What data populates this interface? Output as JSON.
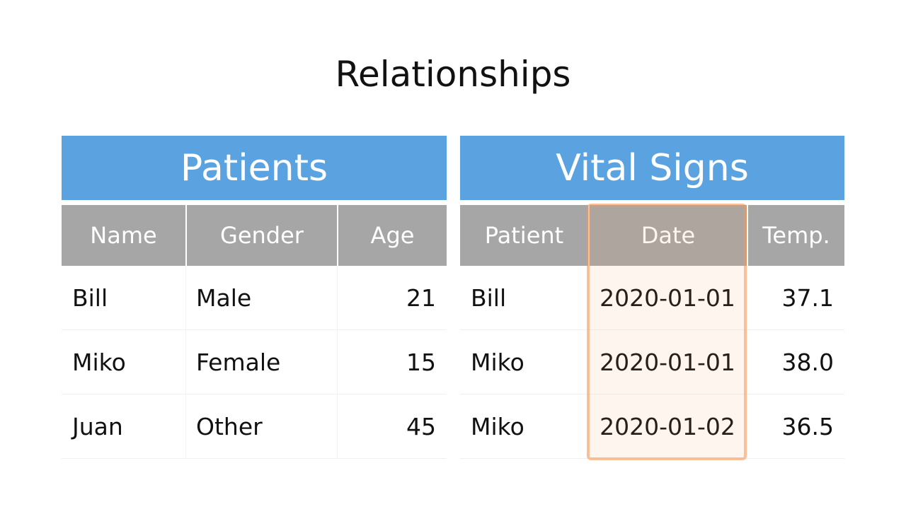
{
  "title": "Relationships",
  "tables": [
    {
      "title": "Patients",
      "columns": [
        "Name",
        "Gender",
        "Age"
      ],
      "rows": [
        [
          "Bill",
          "Male",
          "21"
        ],
        [
          "Miko",
          "Female",
          "15"
        ],
        [
          "Juan",
          "Other",
          "45"
        ]
      ]
    },
    {
      "title": "Vital Signs",
      "columns": [
        "Patient",
        "Date",
        "Temp."
      ],
      "rows": [
        [
          "Bill",
          "2020-01-01",
          "37.1"
        ],
        [
          "Miko",
          "2020-01-01",
          "38.0"
        ],
        [
          "Miko",
          "2020-01-02",
          "36.5"
        ]
      ]
    }
  ]
}
